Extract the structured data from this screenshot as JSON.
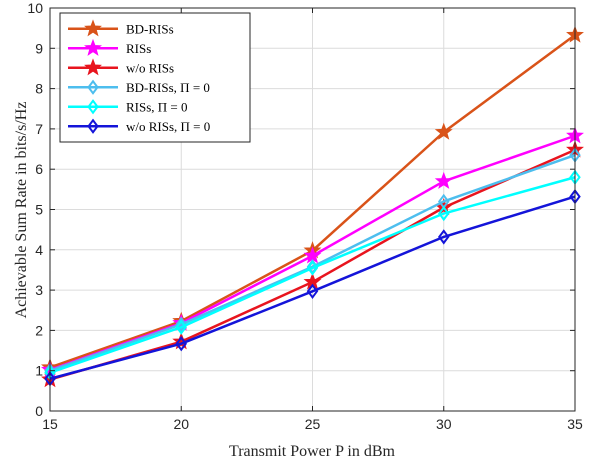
{
  "chart_data": {
    "type": "line",
    "xlabel": "Transmit Power P in dBm",
    "ylabel": "Achievable Sum Rate in bits/s/Hz",
    "xlim": [
      15,
      35
    ],
    "ylim": [
      0,
      10
    ],
    "x_ticks": [
      15,
      20,
      25,
      30,
      35
    ],
    "y_ticks": [
      0,
      1,
      2,
      3,
      4,
      5,
      6,
      7,
      8,
      9,
      10
    ],
    "grid": true,
    "legend_position": "top-left",
    "x": [
      15,
      20,
      25,
      30,
      35
    ],
    "series": [
      {
        "name": "BD-RISs",
        "values": [
          1.08,
          2.23,
          3.98,
          6.92,
          9.33
        ],
        "color": "#D95319",
        "marker": "star"
      },
      {
        "name": "RISs",
        "values": [
          1.02,
          2.18,
          3.85,
          5.7,
          6.83
        ],
        "color": "#FF00FF",
        "marker": "star"
      },
      {
        "name": "w/o RISs",
        "values": [
          0.78,
          1.72,
          3.2,
          5.05,
          6.48
        ],
        "color": "#E8141E",
        "marker": "star"
      },
      {
        "name": "BD-RISs, Π = 0",
        "values": [
          1.0,
          2.15,
          3.58,
          5.2,
          6.35
        ],
        "color": "#4DBEEE",
        "marker": "diamond"
      },
      {
        "name": "RISs, Π = 0",
        "values": [
          0.95,
          2.08,
          3.55,
          4.9,
          5.8
        ],
        "color": "#00FFFF",
        "marker": "diamond"
      },
      {
        "name": "w/o RISs, Π = 0",
        "values": [
          0.8,
          1.67,
          2.97,
          4.32,
          5.32
        ],
        "color": "#1414D9",
        "marker": "diamond"
      }
    ]
  }
}
